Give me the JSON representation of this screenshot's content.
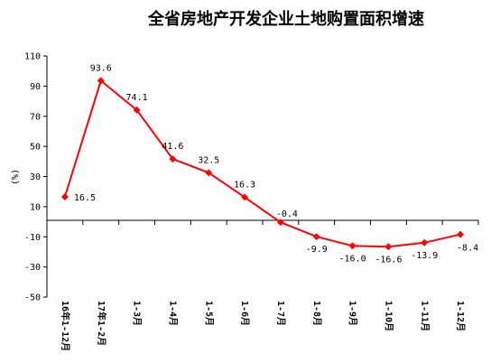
{
  "chart_data": {
    "type": "line",
    "title": "全省房地产开发企业土地购置面积增速",
    "ylabel": "(%)",
    "xlabel": "",
    "ylim": [
      -50,
      110
    ],
    "yticks": [
      -50,
      -30,
      -10,
      10,
      30,
      50,
      70,
      90,
      110
    ],
    "categories": [
      "16年1-12月",
      "17年1-2月",
      "1-3月",
      "1-4月",
      "1-5月",
      "1-6月",
      "1-7月",
      "1-8月",
      "1-9月",
      "1-10月",
      "1-11月",
      "1-12月"
    ],
    "series": [
      {
        "values": [
          16.5,
          93.6,
          74.1,
          41.6,
          32.5,
          16.3,
          -0.4,
          -9.9,
          -16.0,
          -16.6,
          -13.9,
          -8.4
        ],
        "labels": [
          "16.5",
          "93.6",
          "74.1",
          "41.6",
          "32.5",
          "16.3",
          "-0.4",
          "-9.9",
          "-16.0",
          "-16.6",
          "-13.9",
          "-8.4"
        ],
        "color": "#ff0000"
      }
    ],
    "grid": false,
    "legend": "none"
  }
}
